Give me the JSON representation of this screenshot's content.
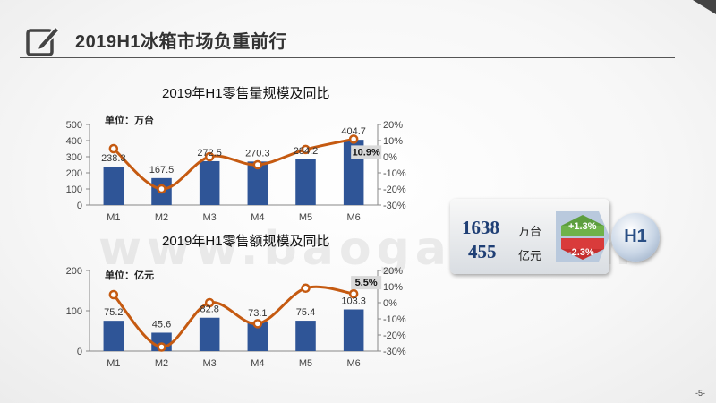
{
  "slide": {
    "title": "2019H1冰箱市场负重前行",
    "page_number": "-5-",
    "watermark": "www.baogao.com"
  },
  "colors": {
    "bar": "#2f5597",
    "line": "#c55a11",
    "highlight_bg": "#d9d9d9"
  },
  "chart_data": [
    {
      "type": "bar",
      "title": "2019年H1零售量规模及同比",
      "unit_label": "单位：万台",
      "categories": [
        "M1",
        "M2",
        "M3",
        "M4",
        "M5",
        "M6"
      ],
      "series": [
        {
          "name": "零售量",
          "axis": "left",
          "values": [
            238.3,
            167.5,
            272.5,
            270.3,
            284.2,
            404.7
          ],
          "labels": [
            "238.3",
            "167.5",
            "272.5",
            "270.3",
            "284.2",
            "404.7"
          ]
        },
        {
          "name": "同比",
          "type": "line",
          "axis": "right",
          "values": [
            5.0,
            -20.0,
            0.0,
            -5.0,
            4.5,
            10.9
          ]
        }
      ],
      "ylim": [
        0,
        500
      ],
      "yticks": [
        "0",
        "100",
        "200",
        "300",
        "400",
        "500"
      ],
      "y2lim": [
        -30,
        20
      ],
      "y2ticks": [
        "-30%",
        "-20%",
        "-10%",
        "0%",
        "10%",
        "20%"
      ],
      "highlight": {
        "index": 5,
        "label": "10.9%"
      }
    },
    {
      "type": "bar",
      "title": "2019年H1零售额规模及同比",
      "unit_label": "单位：亿元",
      "categories": [
        "M1",
        "M2",
        "M3",
        "M4",
        "M5",
        "M6"
      ],
      "series": [
        {
          "name": "零售额",
          "axis": "left",
          "values": [
            75.2,
            45.6,
            82.8,
            73.1,
            75.4,
            103.3
          ],
          "labels": [
            "75.2",
            "45.6",
            "82.8",
            "73.1",
            "75.4",
            "103.3"
          ]
        },
        {
          "name": "同比",
          "type": "line",
          "axis": "right",
          "values": [
            5.0,
            -27.5,
            0.0,
            -13.0,
            9.0,
            5.5
          ]
        }
      ],
      "ylim": [
        0,
        200
      ],
      "yticks": [
        "0",
        "100",
        "200"
      ],
      "y2lim": [
        -30,
        20
      ],
      "y2ticks": [
        "-30%",
        "-20%",
        "-10%",
        "0%",
        "10%",
        "20%"
      ],
      "highlight": {
        "index": 5,
        "label": "5.5%"
      }
    }
  ],
  "summary": {
    "volume": "1638",
    "volume_unit": "万台",
    "volume_change": "+1.3%",
    "amount": "455",
    "amount_unit": "亿元",
    "amount_change": "-2.3%",
    "badge": "H1"
  }
}
